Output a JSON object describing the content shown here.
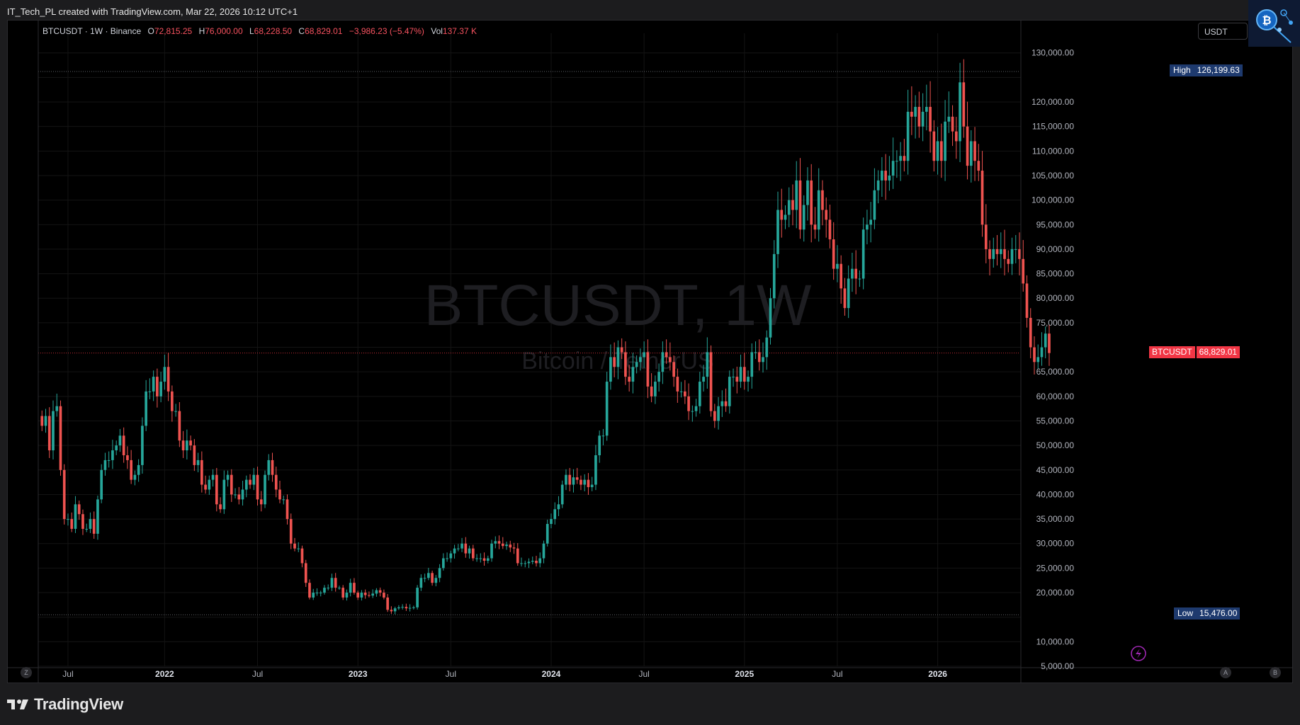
{
  "caption": "IT_Tech_PL created with TradingView.com, Mar 22, 2026 10:12 UTC+1",
  "legend": {
    "symbol": "BTCUSDT · 1W · Binance",
    "o_label": "O",
    "o_value": "72,815.25",
    "h_label": "H",
    "h_value": "76,000.00",
    "l_label": "L",
    "l_value": "68,228.50",
    "c_label": "C",
    "c_value": "68,829.01",
    "change": "−3,986.23 (−5.47%)",
    "vol_label": "Vol",
    "vol_value": "137.37 K"
  },
  "currency": "USDT",
  "watermark": {
    "line1": "BTCUSDT, 1W",
    "line2": "Bitcoin / TetherUS"
  },
  "markers": {
    "high": {
      "label": "High",
      "value": "126,199.63",
      "price": 126199.63
    },
    "low": {
      "label": "Low",
      "value": "15,476.00",
      "price": 15476
    },
    "last": {
      "label": "BTCUSDT",
      "value": "68,829.01",
      "price": 68829.01
    }
  },
  "corner_buttons": {
    "left": "Z",
    "auto": "A",
    "right": "B"
  },
  "footer": {
    "brand": "TradingView"
  },
  "colors": {
    "up": "#26a69a",
    "down": "#ef5350",
    "high_tag": "#1e3a6e",
    "last_tag": "#f23645",
    "grid": "#141414"
  },
  "chart_data": {
    "type": "candlestick",
    "timeframe": "1W",
    "ylim": [
      5000,
      134000
    ],
    "y_ticks": [
      5000,
      10000,
      15000,
      20000,
      25000,
      30000,
      35000,
      40000,
      45000,
      50000,
      55000,
      60000,
      65000,
      70000,
      75000,
      80000,
      85000,
      90000,
      95000,
      100000,
      105000,
      110000,
      115000,
      120000,
      125000,
      130000
    ],
    "y_tick_labels": [
      "5,000.00",
      "10,000.00",
      "",
      "20,000.00",
      "25,000.00",
      "30,000.00",
      "35,000.00",
      "40,000.00",
      "45,000.00",
      "50,000.00",
      "55,000.00",
      "60,000.00",
      "65,000.00",
      "",
      "75,000.00",
      "80,000.00",
      "85,000.00",
      "90,000.00",
      "95,000.00",
      "100,000.00",
      "105,000.00",
      "110,000.00",
      "115,000.00",
      "120,000.00",
      "",
      "130,000.00"
    ],
    "x_ticks": [
      {
        "label": "Jul",
        "week": 7
      },
      {
        "label": "2022",
        "week": 33
      },
      {
        "label": "Jul",
        "week": 58
      },
      {
        "label": "2023",
        "week": 85
      },
      {
        "label": "Jul",
        "week": 110
      },
      {
        "label": "2024",
        "week": 137
      },
      {
        "label": "Jul",
        "week": 162
      },
      {
        "label": "2025",
        "week": 189
      },
      {
        "label": "Jul",
        "week": 214
      },
      {
        "label": "2026",
        "week": 241
      }
    ],
    "x_range": [
      -1,
      263
    ],
    "closes": [
      54000,
      56000,
      49000,
      57000,
      58000,
      45000,
      35000,
      35000,
      33000,
      38000,
      36000,
      33000,
      33000,
      35000,
      32000,
      39000,
      45000,
      47000,
      47000,
      49000,
      50000,
      52000,
      48000,
      47000,
      43000,
      44000,
      46000,
      54000,
      61000,
      61000,
      64000,
      60000,
      63000,
      66000,
      61000,
      57000,
      57000,
      51000,
      49000,
      51000,
      50000,
      46000,
      47000,
      42000,
      41000,
      43000,
      44000,
      38000,
      37000,
      43000,
      44000,
      40000,
      40000,
      39000,
      41000,
      43000,
      42000,
      44000,
      39000,
      38000,
      44000,
      47000,
      44000,
      41000,
      39000,
      39000,
      35000,
      30000,
      29000,
      29000,
      26000,
      22000,
      19000,
      20000,
      20000,
      20000,
      21000,
      21000,
      23000,
      21000,
      21000,
      19000,
      20000,
      22000,
      20000,
      19000,
      20000,
      19500,
      19400,
      19800,
      20500,
      20000,
      19000,
      16500,
      16200,
      16800,
      17000,
      17100,
      16800,
      16900,
      17000,
      21000,
      23000,
      23000,
      24000,
      22000,
      23000,
      25000,
      27000,
      27000,
      28000,
      29000,
      29000,
      30000,
      28000,
      29000,
      27000,
      27000,
      27000,
      26500,
      27000,
      30000,
      30500,
      30000,
      29500,
      29800,
      29200,
      29000,
      26000,
      26000,
      26000,
      26300,
      26500,
      26000,
      27000,
      30000,
      34000,
      35000,
      37000,
      38000,
      42000,
      44000,
      42000,
      43500,
      43000,
      42000,
      43000,
      41500,
      42000,
      48000,
      52000,
      52000,
      63000,
      68000,
      66000,
      70000,
      69000,
      64000,
      63000,
      66000,
      67000,
      68000,
      69000,
      62000,
      60000,
      63000,
      65000,
      69000,
      68000,
      67000,
      64000,
      61000,
      61000,
      60000,
      57000,
      57000,
      58000,
      63000,
      64000,
      69000,
      57000,
      55000,
      58000,
      59000,
      58000,
      64000,
      64000,
      63000,
      66000,
      63000,
      64000,
      69000,
      69000,
      67000,
      68000,
      72000,
      80000,
      89000,
      98000,
      96000,
      97000,
      100000,
      98000,
      104000,
      94000,
      99000,
      104000,
      95000,
      94000,
      102000,
      98000,
      96000,
      92000,
      86000,
      87000,
      82000,
      78000,
      84000,
      86000,
      84000,
      84000,
      94000,
      95000,
      96000,
      102000,
      104000,
      106000,
      104000,
      105000,
      108000,
      108000,
      109000,
      108000,
      118000,
      117000,
      119000,
      115000,
      118000,
      119000,
      114000,
      108000,
      112000,
      108000,
      116000,
      117000,
      114000,
      112000,
      124000,
      115000,
      107000,
      112000,
      108000,
      106000,
      95000,
      90000,
      88000,
      90000,
      89000,
      90000,
      88000,
      87000,
      90000,
      90000,
      88000,
      83000,
      76000,
      70000,
      67000,
      68000,
      70000,
      72800,
      68829
    ]
  }
}
